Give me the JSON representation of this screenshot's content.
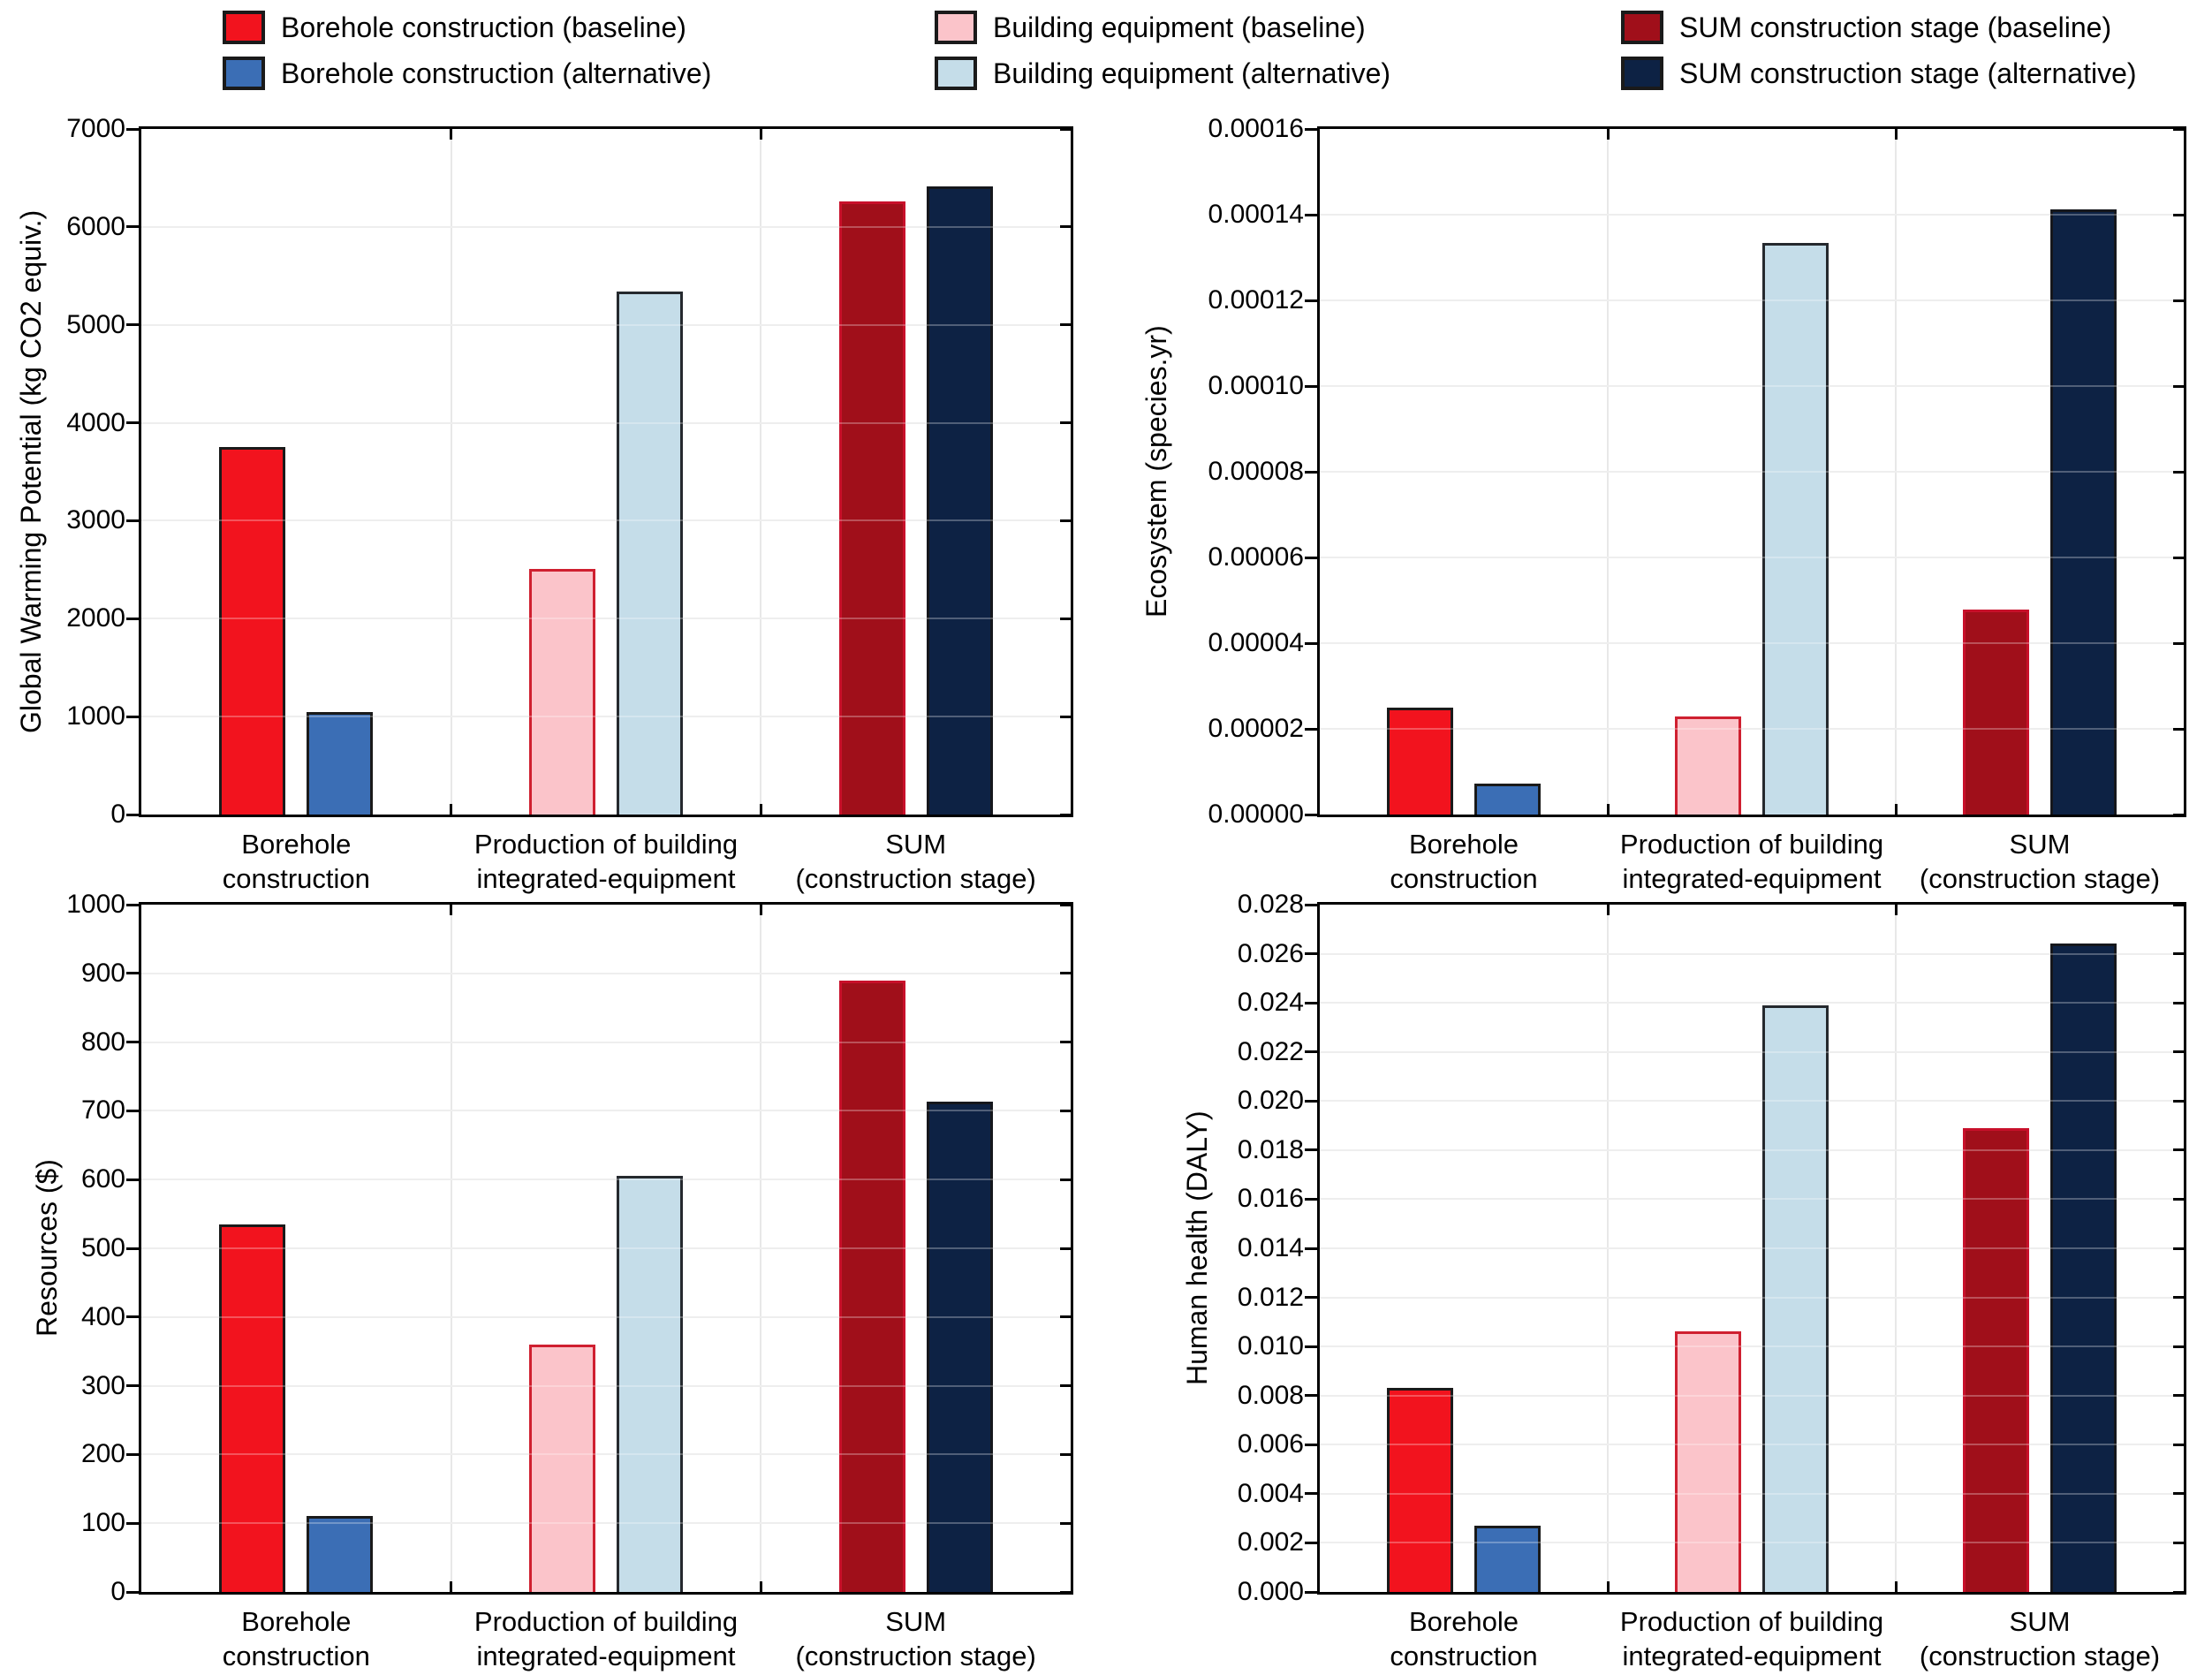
{
  "figure": {
    "background": "#ffffff",
    "axis_color": "#000000",
    "gridline_color": "#e8e8e8",
    "grid": true,
    "legend_position": "top"
  },
  "palette": {
    "red": {
      "fill": "#F2131E",
      "border": "#1A1A1A"
    },
    "blue": {
      "fill": "#3B6EB5",
      "border": "#1A1A1A"
    },
    "pink": {
      "fill": "#FBC4CA",
      "border": "#CF2030"
    },
    "lightblue": {
      "fill": "#C5DDE9",
      "border": "#25292E"
    },
    "darkred": {
      "fill": "#A00F1A",
      "border": "#C8102A"
    },
    "navy": {
      "fill": "#0D2244",
      "border": "#15171C"
    }
  },
  "legend": {
    "rows": [
      [
        {
          "label": "Borehole construction (baseline)",
          "color": "red"
        },
        {
          "label": "Building equipment (baseline)",
          "color": "pink"
        },
        {
          "label": "SUM construction stage (baseline)",
          "color": "darkred"
        }
      ],
      [
        {
          "label": "Borehole construction (alternative)",
          "color": "blue"
        },
        {
          "label": "Building equipment (alternative)",
          "color": "lightblue"
        },
        {
          "label": "SUM construction stage (alternative)",
          "color": "navy"
        }
      ]
    ]
  },
  "chart_data": [
    {
      "type": "bar",
      "title": "",
      "xlabel": "",
      "ylabel": "Global Warming Potential (kg CO2 equiv.)",
      "ylim": [
        0,
        7000
      ],
      "ytick_labels": [
        "0",
        "1000",
        "2000",
        "3000",
        "4000",
        "5000",
        "6000",
        "7000"
      ],
      "categories": [
        [
          "Borehole",
          "construction"
        ],
        [
          "Production of building",
          "integrated-equipment"
        ],
        [
          "SUM",
          "(construction stage)"
        ]
      ],
      "series": [
        {
          "name": "Borehole construction (baseline)",
          "color": "red",
          "category": 0,
          "slot": 0,
          "value": 3755
        },
        {
          "name": "Borehole construction (alternative)",
          "color": "blue",
          "category": 0,
          "slot": 1,
          "value": 1045
        },
        {
          "name": "Building equipment (baseline)",
          "color": "pink",
          "category": 1,
          "slot": 0,
          "value": 2505
        },
        {
          "name": "Building equipment (alternative)",
          "color": "lightblue",
          "category": 1,
          "slot": 1,
          "value": 5340
        },
        {
          "name": "SUM construction stage (baseline)",
          "color": "darkred",
          "category": 2,
          "slot": 0,
          "value": 6260
        },
        {
          "name": "SUM construction stage (alternative)",
          "color": "navy",
          "category": 2,
          "slot": 1,
          "value": 6410
        }
      ]
    },
    {
      "type": "bar",
      "title": "",
      "xlabel": "",
      "ylabel": "Ecosystem (species.yr)",
      "ylim": [
        0,
        0.00016
      ],
      "ytick_labels": [
        "0.00000",
        "0.00002",
        "0.00004",
        "0.00006",
        "0.00008",
        "0.00010",
        "0.00012",
        "0.00014",
        "0.00016"
      ],
      "categories": [
        [
          "Borehole",
          "construction"
        ],
        [
          "Production of building",
          "integrated-equipment"
        ],
        [
          "SUM",
          "(construction stage)"
        ]
      ],
      "series": [
        {
          "name": "Borehole construction (baseline)",
          "color": "red",
          "category": 0,
          "slot": 0,
          "value": 2.5e-05
        },
        {
          "name": "Borehole construction (alternative)",
          "color": "blue",
          "category": 0,
          "slot": 1,
          "value": 7.3e-06
        },
        {
          "name": "Building equipment (baseline)",
          "color": "pink",
          "category": 1,
          "slot": 0,
          "value": 2.29e-05
        },
        {
          "name": "Building equipment (alternative)",
          "color": "lightblue",
          "category": 1,
          "slot": 1,
          "value": 0.0001335
        },
        {
          "name": "SUM construction stage (baseline)",
          "color": "darkred",
          "category": 2,
          "slot": 0,
          "value": 4.78e-05
        },
        {
          "name": "SUM construction stage (alternative)",
          "color": "navy",
          "category": 2,
          "slot": 1,
          "value": 0.0001413
        }
      ]
    },
    {
      "type": "bar",
      "title": "",
      "xlabel": "",
      "ylabel": "Resources ($)",
      "ylim": [
        0,
        1000
      ],
      "ytick_labels": [
        "0",
        "100",
        "200",
        "300",
        "400",
        "500",
        "600",
        "700",
        "800",
        "900",
        "1000"
      ],
      "categories": [
        [
          "Borehole",
          "construction"
        ],
        [
          "Production of building",
          "integrated-equipment"
        ],
        [
          "SUM",
          "(construction stage)"
        ]
      ],
      "series": [
        {
          "name": "Borehole construction (baseline)",
          "color": "red",
          "category": 0,
          "slot": 0,
          "value": 535
        },
        {
          "name": "Borehole construction (alternative)",
          "color": "blue",
          "category": 0,
          "slot": 1,
          "value": 110
        },
        {
          "name": "Building equipment (baseline)",
          "color": "pink",
          "category": 1,
          "slot": 0,
          "value": 360
        },
        {
          "name": "Building equipment (alternative)",
          "color": "lightblue",
          "category": 1,
          "slot": 1,
          "value": 606
        },
        {
          "name": "SUM construction stage (baseline)",
          "color": "darkred",
          "category": 2,
          "slot": 0,
          "value": 890
        },
        {
          "name": "SUM construction stage (alternative)",
          "color": "navy",
          "category": 2,
          "slot": 1,
          "value": 713
        }
      ]
    },
    {
      "type": "bar",
      "title": "",
      "xlabel": "",
      "ylabel": "Human health (DALY)",
      "ylim": [
        0,
        0.028
      ],
      "ytick_labels": [
        "0.000",
        "0.002",
        "0.004",
        "0.006",
        "0.008",
        "0.010",
        "0.012",
        "0.014",
        "0.016",
        "0.018",
        "0.020",
        "0.022",
        "0.024",
        "0.026",
        "0.028"
      ],
      "categories": [
        [
          "Borehole",
          "construction"
        ],
        [
          "Production of building",
          "integrated-equipment"
        ],
        [
          "SUM",
          "(construction stage)"
        ]
      ],
      "series": [
        {
          "name": "Borehole construction (baseline)",
          "color": "red",
          "category": 0,
          "slot": 0,
          "value": 0.0083
        },
        {
          "name": "Borehole construction (alternative)",
          "color": "blue",
          "category": 0,
          "slot": 1,
          "value": 0.0027
        },
        {
          "name": "Building equipment (baseline)",
          "color": "pink",
          "category": 1,
          "slot": 0,
          "value": 0.0106
        },
        {
          "name": "Building equipment (alternative)",
          "color": "lightblue",
          "category": 1,
          "slot": 1,
          "value": 0.0239
        },
        {
          "name": "SUM construction stage (baseline)",
          "color": "darkred",
          "category": 2,
          "slot": 0,
          "value": 0.0189
        },
        {
          "name": "SUM construction stage (alternative)",
          "color": "navy",
          "category": 2,
          "slot": 1,
          "value": 0.0264
        }
      ]
    }
  ]
}
